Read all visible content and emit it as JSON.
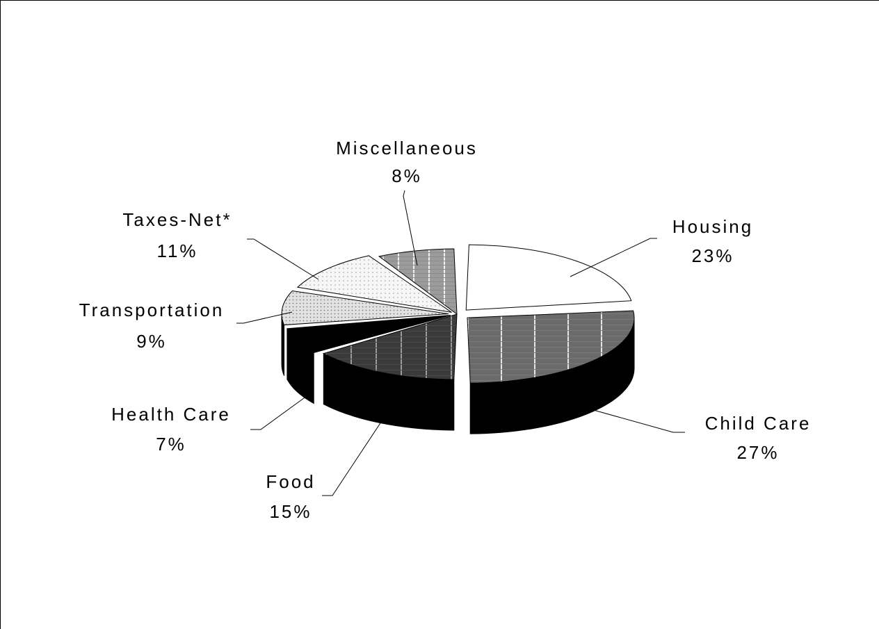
{
  "chart_data": {
    "type": "pie",
    "style": "3d-exploded",
    "title": "",
    "legend": "none",
    "slices": [
      {
        "label": "Housing",
        "value": 23,
        "value_label": "23%",
        "fill": "white"
      },
      {
        "label": "Child Care",
        "value": 27,
        "value_label": "27%",
        "fill": "dark-gray-grid"
      },
      {
        "label": "Food",
        "value": 15,
        "value_label": "15%",
        "fill": "charcoal-grid"
      },
      {
        "label": "Health Care",
        "value": 7,
        "value_label": "7%",
        "fill": "black"
      },
      {
        "label": "Transportation",
        "value": 9,
        "value_label": "9%",
        "fill": "light-gray-dots"
      },
      {
        "label": "Taxes-Net*",
        "value": 11,
        "value_label": "11%",
        "fill": "sparse-dots"
      },
      {
        "label": "Miscellaneous",
        "value": 8,
        "value_label": "8%",
        "fill": "gray-grid"
      }
    ]
  }
}
